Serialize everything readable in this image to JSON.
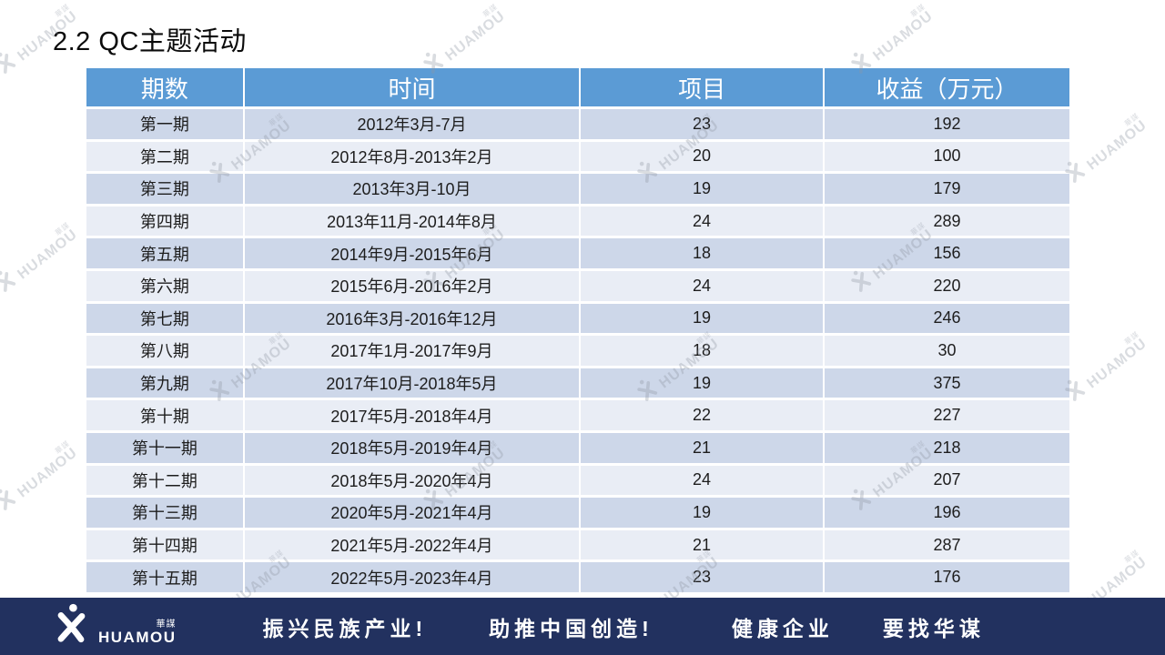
{
  "slide": {
    "title": "2.2 QC主题活动"
  },
  "table": {
    "headers": [
      "期数",
      "时间",
      "项目",
      "收益（万元）"
    ],
    "rows": [
      [
        "第一期",
        "2012年3月-7月",
        "23",
        "192"
      ],
      [
        "第二期",
        "2012年8月-2013年2月",
        "20",
        "100"
      ],
      [
        "第三期",
        "2013年3月-10月",
        "19",
        "179"
      ],
      [
        "第四期",
        "2013年11月-2014年8月",
        "24",
        "289"
      ],
      [
        "第五期",
        "2014年9月-2015年6月",
        "18",
        "156"
      ],
      [
        "第六期",
        "2015年6月-2016年2月",
        "24",
        "220"
      ],
      [
        "第七期",
        "2016年3月-2016年12月",
        "19",
        "246"
      ],
      [
        "第八期",
        "2017年1月-2017年9月",
        "18",
        "30"
      ],
      [
        "第九期",
        "2017年10月-2018年5月",
        "19",
        "375"
      ],
      [
        "第十期",
        "2017年5月-2018年4月",
        "22",
        "227"
      ],
      [
        "第十一期",
        "2018年5月-2019年4月",
        "21",
        "218"
      ],
      [
        "第十二期",
        "2018年5月-2020年4月",
        "24",
        "207"
      ],
      [
        "第十三期",
        "2020年5月-2021年4月",
        "19",
        "196"
      ],
      [
        "第十四期",
        "2021年5月-2022年4月",
        "21",
        "287"
      ],
      [
        "第十五期",
        "2022年5月-2023年4月",
        "23",
        "176"
      ]
    ]
  },
  "footer": {
    "logo_en": "HUAMOU",
    "logo_cn": "華謀",
    "slogans": [
      "振兴民族产业!",
      "助推中国创造!",
      "健康企业",
      "要找华谋"
    ]
  },
  "watermark": {
    "text_en": "HUAMOU",
    "text_cn": "華謀"
  },
  "colors": {
    "header_bg": "#5B9BD5",
    "row_dark": "#CDD7E9",
    "row_light": "#E9EDF5",
    "footer_bg": "#22315F"
  }
}
